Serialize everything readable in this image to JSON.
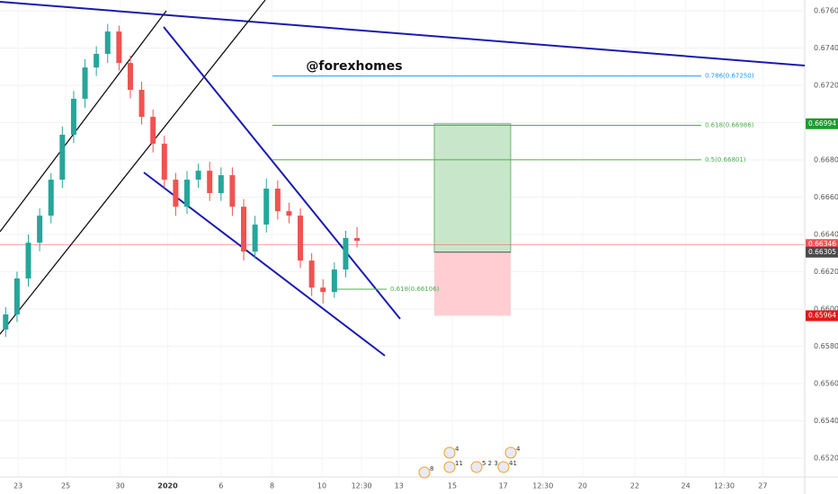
{
  "chart_data": {
    "type": "candlestick",
    "watermark": "@forexhomes",
    "open": [
      0.6589,
      0.65971,
      0.66164,
      0.66356,
      0.66501,
      0.66694,
      0.66935,
      0.67128,
      0.67296,
      0.67369,
      0.67489,
      0.6732,
      0.67176,
      0.67031,
      0.66887,
      0.66694,
      0.66549,
      0.66694,
      0.66742,
      0.66622,
      0.66718,
      0.66549,
      0.66308,
      0.66453,
      0.66646,
      0.66525,
      0.66501,
      0.6626,
      0.66115,
      0.66091,
      0.66212,
      0.66381
    ],
    "high": [
      0.6601,
      0.662,
      0.664,
      0.6654,
      0.6673,
      0.6698,
      0.6717,
      0.6734,
      0.6741,
      0.6753,
      0.6752,
      0.6736,
      0.6722,
      0.6707,
      0.6693,
      0.6673,
      0.6674,
      0.6678,
      0.6679,
      0.6676,
      0.6676,
      0.6659,
      0.665,
      0.667,
      0.6669,
      0.6657,
      0.6654,
      0.663,
      0.6616,
      0.6625,
      0.6642,
      0.6644
    ],
    "low": [
      0.6585,
      0.6593,
      0.6612,
      0.6631,
      0.6646,
      0.6665,
      0.6689,
      0.6708,
      0.6725,
      0.6732,
      0.6728,
      0.6713,
      0.6699,
      0.6684,
      0.6665,
      0.665,
      0.6651,
      0.6665,
      0.6658,
      0.6658,
      0.665,
      0.6626,
      0.6627,
      0.6641,
      0.6648,
      0.6646,
      0.6622,
      0.6607,
      0.6603,
      0.6606,
      0.6617,
      0.6633
    ],
    "close": [
      0.65971,
      0.66164,
      0.66356,
      0.66501,
      0.66694,
      0.66935,
      0.67128,
      0.67296,
      0.67369,
      0.67489,
      0.6732,
      0.67176,
      0.67031,
      0.66887,
      0.66694,
      0.66549,
      0.66694,
      0.66742,
      0.66622,
      0.66718,
      0.66549,
      0.66308,
      0.66453,
      0.66646,
      0.66525,
      0.66501,
      0.6626,
      0.66115,
      0.66091,
      0.66212,
      0.66381,
      0.66366
    ],
    "up_color": "#26a69a",
    "down_color": "#ef5350",
    "ylim": [
      0.65099,
      0.67658
    ],
    "yticks": [
      {
        "value": 0.652,
        "label": "0.65200"
      },
      {
        "value": 0.654,
        "label": "0.65400"
      },
      {
        "value": 0.656,
        "label": "0.65600"
      },
      {
        "value": 0.658,
        "label": "0.65800"
      },
      {
        "value": 0.66,
        "label": "0.66000"
      },
      {
        "value": 0.662,
        "label": "0.66200"
      },
      {
        "value": 0.664,
        "label": "0.66400"
      },
      {
        "value": 0.666,
        "label": "0.66600"
      },
      {
        "value": 0.668,
        "label": "0.66800"
      },
      {
        "value": 0.67,
        "label": "0.67000"
      },
      {
        "value": 0.672,
        "label": "0.67200"
      },
      {
        "value": 0.674,
        "label": "0.67400"
      },
      {
        "value": 0.676,
        "label": "0.67600"
      }
    ],
    "xlim": [
      -0.5,
      70.5
    ],
    "xticks": [
      {
        "value": 1.1,
        "label": "23"
      },
      {
        "value": 5.3,
        "label": "25"
      },
      {
        "value": 10.1,
        "label": "30"
      },
      {
        "value": 14.3,
        "label": "2020"
      },
      {
        "value": 19,
        "label": "6"
      },
      {
        "value": 23.5,
        "label": "8"
      },
      {
        "value": 27.9,
        "label": "10"
      },
      {
        "value": 31.4,
        "label": "12:30"
      },
      {
        "value": 34.7,
        "label": "13"
      },
      {
        "value": 39.4,
        "label": "15"
      },
      {
        "value": 43.9,
        "label": "17"
      },
      {
        "value": 47.4,
        "label": "12:30"
      },
      {
        "value": 50.9,
        "label": "20"
      },
      {
        "value": 55.5,
        "label": "22"
      },
      {
        "value": 60,
        "label": "24"
      },
      {
        "value": 63.4,
        "label": "12:30"
      },
      {
        "value": 66.8,
        "label": "27"
      }
    ],
    "fib_levels": [
      {
        "label": "0.786(0.67250)",
        "value": 0.6725,
        "color": "#2196f3"
      },
      {
        "label": "0.618(0.66986)",
        "value": 0.66986,
        "color": "#4caf50"
      },
      {
        "label": "0.5(0.66801)",
        "value": 0.66801,
        "color": "#4caf50"
      },
      {
        "label": "0.618(0.66106)",
        "value": 0.66106,
        "color": "#4caf50"
      }
    ],
    "position": {
      "target": 0.66994,
      "entry": 0.66305,
      "stop": 0.65964
    },
    "price_labels": [
      {
        "value": 0.66994,
        "label": "0.66994",
        "color": "#1e9a2f"
      },
      {
        "value": 0.66346,
        "label": "0.66346",
        "color": "#ef5350"
      },
      {
        "value": 0.66305,
        "label": "0.66305",
        "color": "#4a4a4a"
      },
      {
        "value": 0.65964,
        "label": "0.65964",
        "color": "#e01818"
      }
    ],
    "events": [
      "8",
      "4",
      "11",
      "5 2 3",
      "41",
      "4"
    ]
  }
}
